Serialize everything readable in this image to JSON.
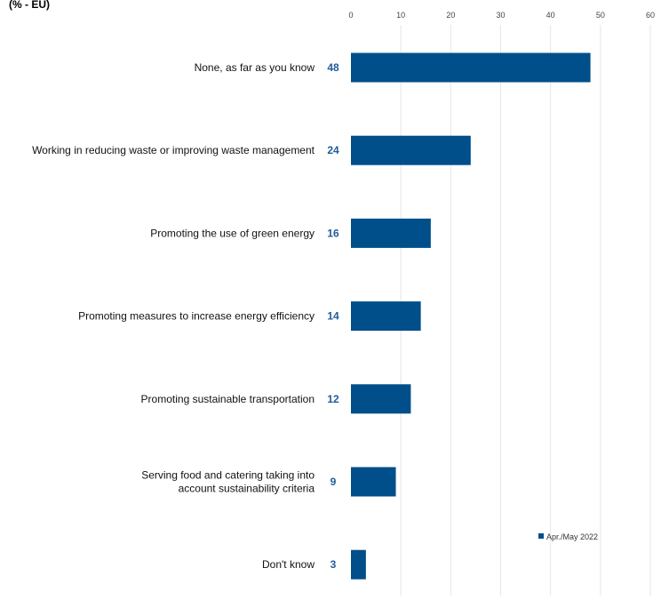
{
  "chart_data": {
    "type": "bar",
    "orientation": "horizontal",
    "subtitle": "(% - EU)",
    "categories": [
      [
        "None, as far as you know"
      ],
      [
        "Working in reducing waste or improving waste management"
      ],
      [
        "Promoting the use of green energy"
      ],
      [
        "Promoting measures to increase energy efficiency"
      ],
      [
        "Promoting sustainable transportation"
      ],
      [
        "Serving food and catering taking into",
        "account sustainability criteria"
      ],
      [
        "Don't know"
      ]
    ],
    "series": [
      {
        "name": "Apr./May 2022",
        "values": [
          48,
          24,
          16,
          14,
          12,
          9,
          3
        ]
      }
    ],
    "xlim": [
      0,
      60
    ],
    "xticks": [
      "0",
      "10",
      "20",
      "30",
      "40",
      "50",
      "60"
    ],
    "grid": true,
    "legend_position": "bottom-right",
    "bar_color": "#004f8a",
    "value_label_color": "#1f5c99",
    "grid_color": "#e6e6e6"
  }
}
